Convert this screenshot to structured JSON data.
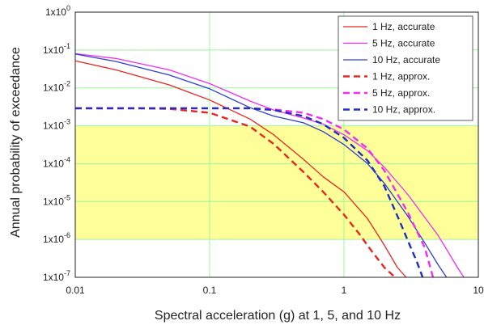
{
  "chart_data": {
    "type": "line",
    "xscale": "log",
    "yscale": "log",
    "xlim": [
      0.01,
      10
    ],
    "ylim": [
      1e-07,
      1
    ],
    "xlabel": "Spectral acceleration (g) at 1, 5, and 10 Hz",
    "ylabel": "Annual probability of exceedance",
    "grid": true,
    "grid_color": "#9cf59c",
    "legend_position": "top-right",
    "x_ticks": [
      {
        "value": 0.01,
        "label": "0.01"
      },
      {
        "value": 0.1,
        "label": "0.1"
      },
      {
        "value": 1,
        "label": "1"
      },
      {
        "value": 10,
        "label": "10"
      }
    ],
    "y_ticks": [
      {
        "value": 1,
        "mantissa": "1x10",
        "exp": "0"
      },
      {
        "value": 0.1,
        "mantissa": "1x10",
        "exp": "-1"
      },
      {
        "value": 0.01,
        "mantissa": "1x10",
        "exp": "-2"
      },
      {
        "value": 0.001,
        "mantissa": "1x10",
        "exp": "-3"
      },
      {
        "value": 0.0001,
        "mantissa": "1x10",
        "exp": "-4"
      },
      {
        "value": 1e-05,
        "mantissa": "1x10",
        "exp": "-5"
      },
      {
        "value": 1e-06,
        "mantissa": "1x10",
        "exp": "-6"
      },
      {
        "value": 1e-07,
        "mantissa": "1x10",
        "exp": "-7"
      }
    ],
    "shaded_band": {
      "y_from": 1e-06,
      "y_to": 0.001,
      "color": "#ffff99"
    },
    "series": [
      {
        "name": "1 Hz, accurate",
        "color": "#e8251f",
        "dash": "solid",
        "points": [
          [
            0.01,
            0.052
          ],
          [
            0.02,
            0.03
          ],
          [
            0.05,
            0.012
          ],
          [
            0.1,
            0.0048
          ],
          [
            0.2,
            0.0015
          ],
          [
            0.3,
            0.00058
          ],
          [
            0.5,
            0.00013
          ],
          [
            0.7,
            4.5e-05
          ],
          [
            1,
            1.8e-05
          ],
          [
            1.5,
            3.5e-06
          ],
          [
            2,
            7e-07
          ],
          [
            2.5,
            1.8e-07
          ],
          [
            2.9,
            1e-07
          ]
        ]
      },
      {
        "name": "5 Hz, accurate",
        "color": "#f02df0",
        "dash": "solid",
        "points": [
          [
            0.01,
            0.08
          ],
          [
            0.02,
            0.06
          ],
          [
            0.05,
            0.03
          ],
          [
            0.1,
            0.013
          ],
          [
            0.2,
            0.0045
          ],
          [
            0.3,
            0.0026
          ],
          [
            0.5,
            0.0016
          ],
          [
            0.7,
            0.0011
          ],
          [
            1,
            0.00058
          ],
          [
            1.5,
            0.00022
          ],
          [
            2,
            8e-05
          ],
          [
            3,
            1.5e-05
          ],
          [
            4,
            3.8e-06
          ],
          [
            5,
            1.3e-06
          ],
          [
            6,
            4.5e-07
          ],
          [
            7,
            1.8e-07
          ],
          [
            7.8,
            1e-07
          ]
        ]
      },
      {
        "name": "10 Hz, accurate",
        "color": "#2d3dd4",
        "dash": "solid",
        "points": [
          [
            0.01,
            0.078
          ],
          [
            0.02,
            0.05
          ],
          [
            0.05,
            0.022
          ],
          [
            0.1,
            0.0095
          ],
          [
            0.2,
            0.003
          ],
          [
            0.3,
            0.0018
          ],
          [
            0.5,
            0.0012
          ],
          [
            0.7,
            0.0007
          ],
          [
            1,
            0.00032
          ],
          [
            1.5,
            0.0001
          ],
          [
            2,
            3e-05
          ],
          [
            3,
            4e-06
          ],
          [
            4,
            8e-07
          ],
          [
            5,
            2.2e-07
          ],
          [
            5.8,
            1e-07
          ]
        ]
      },
      {
        "name": "1 Hz, approx.",
        "color": "#e8251f",
        "dash": "dashed",
        "points": [
          [
            0.01,
            0.0029
          ],
          [
            0.03,
            0.0029
          ],
          [
            0.05,
            0.0028
          ],
          [
            0.1,
            0.0022
          ],
          [
            0.2,
            0.00095
          ],
          [
            0.3,
            0.00033
          ],
          [
            0.5,
            6e-05
          ],
          [
            0.7,
            1.8e-05
          ],
          [
            1,
            4.5e-06
          ],
          [
            1.3,
            1.4e-06
          ],
          [
            1.6,
            5e-07
          ],
          [
            2,
            1.8e-07
          ],
          [
            2.4,
            1e-07
          ]
        ]
      },
      {
        "name": "5 Hz, approx.",
        "color": "#f02df0",
        "dash": "dashed",
        "points": [
          [
            0.01,
            0.0029
          ],
          [
            0.05,
            0.0029
          ],
          [
            0.1,
            0.0029
          ],
          [
            0.2,
            0.0029
          ],
          [
            0.3,
            0.0027
          ],
          [
            0.5,
            0.0022
          ],
          [
            0.7,
            0.0015
          ],
          [
            1,
            0.0008
          ],
          [
            1.5,
            0.00025
          ],
          [
            2,
            6.5e-05
          ],
          [
            3,
            5e-06
          ],
          [
            4,
            6e-07
          ],
          [
            4.6,
            1e-07
          ]
        ]
      },
      {
        "name": "10 Hz, approx.",
        "color": "#1f2fbf",
        "dash": "dashed",
        "points": [
          [
            0.01,
            0.0029
          ],
          [
            0.05,
            0.0029
          ],
          [
            0.1,
            0.0029
          ],
          [
            0.2,
            0.0029
          ],
          [
            0.3,
            0.0026
          ],
          [
            0.5,
            0.0018
          ],
          [
            0.7,
            0.0011
          ],
          [
            1,
            0.00048
          ],
          [
            1.5,
            0.00012
          ],
          [
            2,
            2.5e-05
          ],
          [
            2.6,
            3e-06
          ],
          [
            3,
            9e-07
          ],
          [
            3.5,
            2.5e-07
          ],
          [
            3.85,
            1e-07
          ]
        ]
      }
    ]
  }
}
